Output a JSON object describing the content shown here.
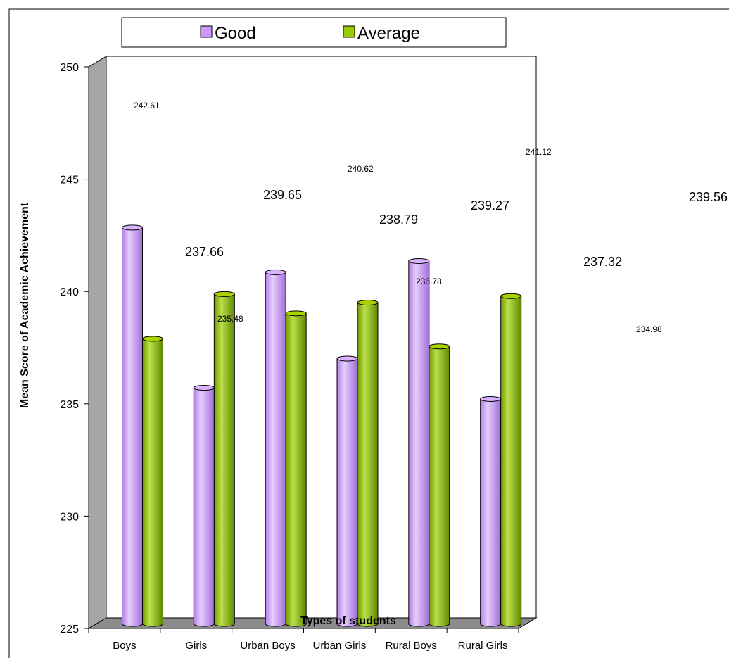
{
  "chart_data": {
    "type": "bar",
    "title": "",
    "xlabel": "Types of students",
    "ylabel": "Mean Score of Academic Achievement",
    "ylim": [
      225,
      250
    ],
    "yticks": [
      225,
      230,
      235,
      240,
      245,
      250
    ],
    "categories": [
      "Boys",
      "Girls",
      "Urban Boys",
      "Urban Girls",
      "Rural Boys",
      "Rural Girls"
    ],
    "series": [
      {
        "name": "Good",
        "color": "#cc99ff",
        "values": [
          242.61,
          235.48,
          240.62,
          236.78,
          241.12,
          234.98
        ]
      },
      {
        "name": "Average",
        "color": "#99cc00",
        "values": [
          237.66,
          239.65,
          238.79,
          239.27,
          237.32,
          239.56
        ]
      }
    ],
    "legend": {
      "position": "top",
      "items": [
        "Good",
        "Average"
      ]
    },
    "grid": false,
    "style": "3d-cylinder"
  }
}
